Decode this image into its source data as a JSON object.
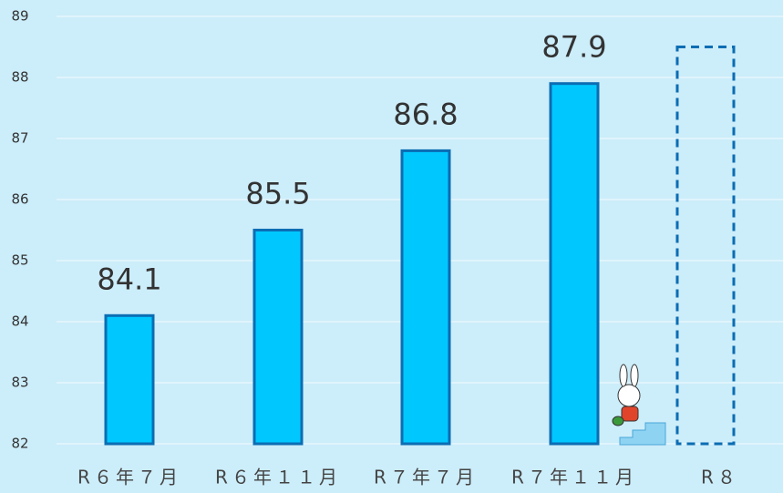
{
  "chart_data": {
    "type": "bar",
    "categories": [
      "R６年７月",
      "R６年１１月",
      "R７年７月",
      "R７年１１月",
      "R８"
    ],
    "values": [
      84.1,
      85.5,
      86.8,
      87.9,
      88.5
    ],
    "dashed": [
      false,
      false,
      false,
      false,
      true
    ],
    "color": "#00c8ff",
    "edge_color": "#0b6db3",
    "ylim": [
      82,
      89
    ],
    "yticks": [
      82,
      83,
      84,
      85,
      86,
      87,
      88,
      89
    ],
    "grid": true
  }
}
